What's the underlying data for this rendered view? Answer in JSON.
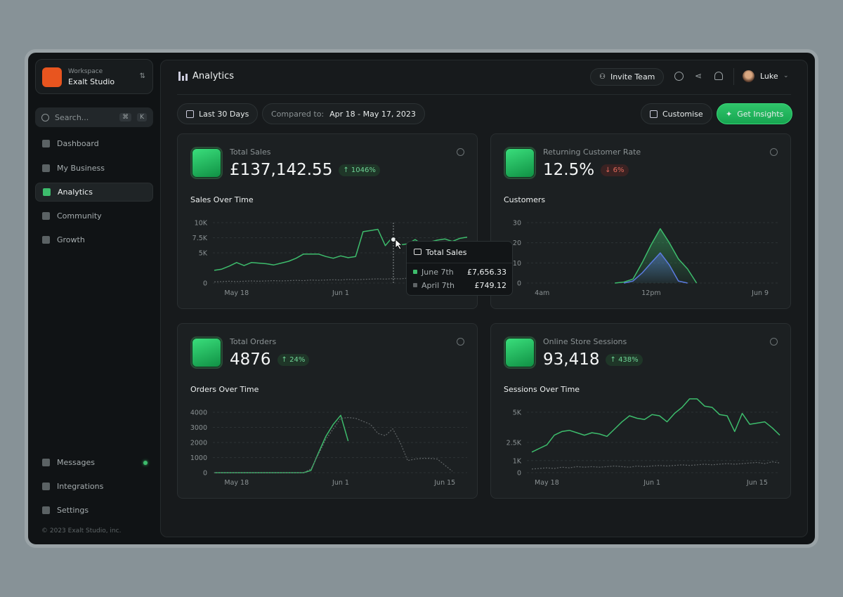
{
  "sidebar": {
    "workspace_label": "Workspace",
    "workspace_name": "Exalt Studio",
    "search": "Search...",
    "shortcut": [
      "⌘",
      "K"
    ],
    "nav": [
      "Dashboard",
      "My Business",
      "Analytics",
      "Community",
      "Growth"
    ],
    "bottom_nav": [
      "Messages",
      "Integrations",
      "Settings"
    ],
    "footer": "© 2023 Exalt Studio, inc."
  },
  "header": {
    "title": "Analytics",
    "invite": "Invite Team",
    "user": "Luke"
  },
  "toolbar": {
    "range": "Last 30 Days",
    "compare_label": "Compared to:",
    "compare_range": "Apr 18 - May 17, 2023",
    "customise": "Customise",
    "insights": "Get Insights"
  },
  "cards": [
    {
      "label": "Total Sales",
      "value": "£137,142.55",
      "change": "1046%",
      "trend": "up",
      "tooltip": {
        "title": "Total Sales",
        "rows": [
          {
            "label": "June 7th",
            "value": "£7,656.33"
          },
          {
            "label": "April 7th",
            "value": "£749.12"
          }
        ]
      },
      "chart": {
        "type": "line",
        "title": "Sales Over Time",
        "categories": [
          null,
          null,
          null,
          "May 18",
          null,
          null,
          null,
          null,
          null,
          null,
          null,
          null,
          null,
          null,
          null,
          null,
          null,
          "Jun 1",
          null,
          null,
          null,
          null,
          null,
          null,
          null,
          null,
          null,
          null,
          null,
          null,
          null,
          null,
          null,
          null,
          null
        ],
        "series": [
          {
            "color": "#3dbc6c",
            "values": [
              2100,
              2300,
              2800,
              3400,
              2900,
              3400,
              3300,
              3200,
              3000,
              3300,
              3600,
              4100,
              4800,
              4800,
              4800,
              4400,
              4100,
              4500,
              4200,
              4400,
              8500,
              8700,
              8900,
              6200,
              7656.33,
              6300,
              6500,
              7200,
              6400,
              6800,
              7100,
              7300,
              6900,
              7400,
              7600
            ]
          },
          {
            "color": "#5f6466",
            "dashed": true,
            "values": [
              200,
              250,
              300,
              250,
              300,
              350,
              300,
              350,
              400,
              350,
              400,
              450,
              400,
              500,
              450,
              500,
              550,
              500,
              600,
              550,
              600,
              650,
              700,
              650,
              749.12,
              700,
              800,
              750,
              850,
              800,
              900,
              850,
              950,
              900,
              1000
            ]
          }
        ],
        "ylim": [
          0,
          10000
        ],
        "yticks": [
          0,
          {
            "value": 5000,
            "label": "5K"
          },
          {
            "value": 7500,
            "label": "7.5K"
          },
          {
            "value": 10000,
            "label": "10K"
          }
        ],
        "grid": true
      }
    },
    {
      "label": "Returning Customer Rate",
      "value": "12.5%",
      "change": "6%",
      "trend": "down",
      "chart": {
        "type": "line",
        "title": "Customers",
        "area": true,
        "categories": [
          null,
          null,
          null,
          null,
          "4am",
          null,
          null,
          null,
          null,
          null,
          null,
          null,
          null,
          null,
          null,
          null,
          "12pm",
          null,
          null,
          null,
          null,
          null,
          null,
          null,
          null,
          null,
          null,
          null,
          "Jun 9",
          null,
          null
        ],
        "series": [
          {
            "color": "#3dbc6c",
            "values": [
              null,
              null,
              null,
              null,
              null,
              null,
              null,
              null,
              null,
              null,
              null,
              null,
              0,
              0.5,
              2,
              10,
              19,
              27,
              20,
              12,
              7,
              0,
              null,
              null,
              null,
              null,
              null,
              null,
              null,
              null,
              null
            ]
          },
          {
            "color": "#5b7be0",
            "values": [
              null,
              null,
              null,
              null,
              null,
              null,
              null,
              null,
              null,
              null,
              null,
              null,
              null,
              0,
              1,
              5,
              10,
              15,
              9,
              1,
              0,
              null,
              null,
              null,
              null,
              null,
              null,
              null,
              null,
              null,
              null
            ]
          }
        ],
        "ylim": [
          0,
          30
        ],
        "yticks": [
          0,
          10,
          20,
          30
        ],
        "grid": true
      }
    },
    {
      "label": "Total Orders",
      "value": "4876",
      "change": "24%",
      "trend": "up",
      "chart": {
        "type": "line",
        "title": "Orders Over Time",
        "categories": [
          null,
          null,
          null,
          "May 18",
          null,
          null,
          null,
          null,
          null,
          null,
          null,
          null,
          null,
          null,
          null,
          null,
          null,
          "Jun 1",
          null,
          null,
          null,
          null,
          null,
          null,
          null,
          null,
          null,
          null,
          null,
          null,
          null,
          "Jun 15",
          null,
          null,
          null
        ],
        "series": [
          {
            "color": "#3dbc6c",
            "values": [
              0,
              0,
              0,
              0,
              0,
              0,
              0,
              0,
              0,
              0,
              0,
              0,
              0,
              150,
              1300,
              2400,
              3200,
              3800,
              2100,
              null,
              null,
              null,
              null,
              null,
              null,
              null,
              null,
              null,
              null,
              null,
              null,
              null,
              null,
              null,
              null
            ]
          },
          {
            "color": "#5f6466",
            "dashed": true,
            "values": [
              0,
              0,
              0,
              0,
              0,
              0,
              0,
              0,
              0,
              0,
              0,
              0,
              0,
              250,
              1200,
              2200,
              2900,
              3600,
              3650,
              3600,
              3400,
              3200,
              2600,
              2450,
              2900,
              2000,
              800,
              900,
              950,
              950,
              900,
              500,
              100,
              null,
              null
            ]
          }
        ],
        "ylim": [
          0,
          4000
        ],
        "yticks": [
          0,
          1000,
          2000,
          3000,
          4000
        ],
        "grid": true
      }
    },
    {
      "label": "Online Store Sessions",
      "value": "93,418",
      "change": "438%",
      "trend": "up",
      "chart": {
        "type": "line",
        "title": "Sessions Over Time",
        "categories": [
          null,
          null,
          "May 18",
          null,
          null,
          null,
          null,
          null,
          null,
          null,
          null,
          null,
          null,
          null,
          null,
          null,
          "Jun 1",
          null,
          null,
          null,
          null,
          null,
          null,
          null,
          null,
          null,
          null,
          null,
          null,
          null,
          "Jun 15",
          null,
          null,
          null
        ],
        "series": [
          {
            "color": "#3dbc6c",
            "values": [
              1700,
              2000,
              2300,
              3100,
              3400,
              3500,
              3300,
              3100,
              3300,
              3200,
              3000,
              3600,
              4200,
              4700,
              4500,
              4400,
              4800,
              4700,
              4200,
              4900,
              5400,
              6100,
              6100,
              5500,
              5400,
              4800,
              4700,
              3400,
              4900,
              4000,
              4100,
              4200,
              3700,
              3100
            ]
          },
          {
            "color": "#5f6466",
            "dashed": true,
            "values": [
              300,
              350,
              400,
              350,
              450,
              400,
              500,
              450,
              500,
              450,
              500,
              550,
              500,
              450,
              550,
              500,
              550,
              600,
              550,
              600,
              650,
              600,
              650,
              700,
              650,
              700,
              750,
              700,
              750,
              800,
              850,
              750,
              900,
              800
            ]
          }
        ],
        "ylim": [
          0,
          6500
        ],
        "yticks": [
          0,
          {
            "value": 1000,
            "label": "1K"
          },
          {
            "value": 2500,
            "label": "2.5K"
          },
          {
            "value": 5000,
            "label": "5K"
          }
        ],
        "grid": true
      }
    }
  ]
}
